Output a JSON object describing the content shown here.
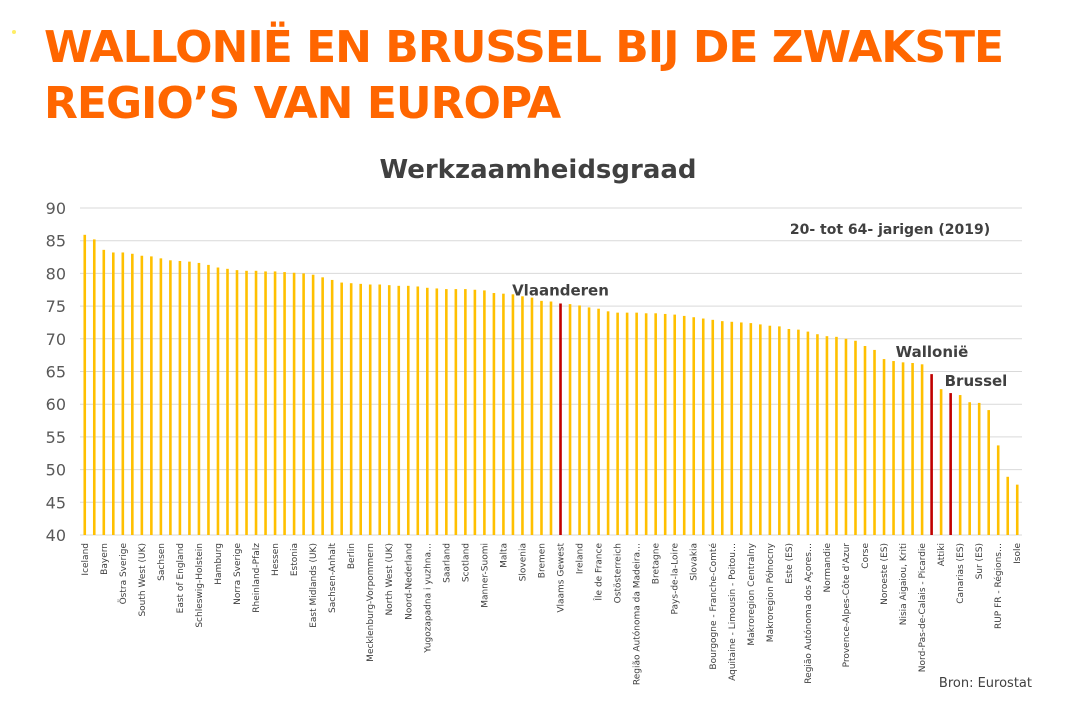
{
  "slide": {
    "title_line1": "WALLONIË EN BRUSSEL BIJ DE ZWAKSTE",
    "title_line2": "REGIO’S VAN EUROPA",
    "source": "Bron: Eurostat"
  },
  "colors": {
    "title": "#ff6600",
    "bar": "#ffc000",
    "highlight": "#c00000",
    "text": "#404040",
    "grid": "#d9d9d9"
  },
  "chart_data": {
    "type": "bar",
    "title": "Werkzaamheidsgraad",
    "subtitle": "20- tot 64- jarigen (2019)",
    "xlabel": "",
    "ylabel": "",
    "ylim": [
      40,
      90
    ],
    "yticks": [
      40,
      45,
      50,
      55,
      60,
      65,
      70,
      75,
      80,
      85,
      90
    ],
    "grid": true,
    "legend": "none",
    "labeled_every": 2,
    "categories": [
      "Iceland",
      "",
      "Bayern",
      "",
      "Östra Sverige",
      "",
      "South West (UK)",
      "",
      "Sachsen",
      "",
      "East of England",
      "",
      "Schleswig-Holstein",
      "",
      "Hamburg",
      "",
      "Norra Sverige",
      "",
      "Rheinland-Pfalz",
      "",
      "Hessen",
      "",
      "Estonia",
      "",
      "East Midlands (UK)",
      "",
      "Sachsen-Anhalt",
      "",
      "Berlin",
      "",
      "Mecklenburg-Vorpommern",
      "",
      "North West (UK)",
      "",
      "Noord-Nederland",
      "",
      "Yugozapadna i yuzhna…",
      "",
      "Saarland",
      "",
      "Scotland",
      "",
      "Manner-Suomi",
      "",
      "Malta",
      "",
      "Slovenia",
      "",
      "Bremen",
      "",
      "Vlaams Gewest",
      "",
      "Ireland",
      "",
      "Île de France",
      "",
      "Ostösterreich",
      "",
      "Região Autónoma da Madeira…",
      "",
      "Bretagne",
      "",
      "Pays-de-la-Loire",
      "",
      "Slovakia",
      "",
      "Bourgogne - Franche-Comté",
      "",
      "Aquitaine - Limousin - Poitou…",
      "",
      "Makroregion Centralny",
      "",
      "Makroregion Północny",
      "",
      "Este (ES)",
      "",
      "Região Autónoma dos Açores…",
      "",
      "Normandie",
      "",
      "Provence-Alpes-Côte d'Azur",
      "",
      "Corse",
      "",
      "Noroeste (ES)",
      "",
      "Nisia Aigaiou, Kriti",
      "",
      "Nord-Pas-de-Calais - Picardie",
      "",
      "Attiki",
      "",
      "Canarias (ES)",
      "",
      "Sur (ES)",
      "",
      "RUP FR - Régions…",
      "",
      "Isole"
    ],
    "values": [
      85.9,
      85.2,
      83.6,
      83.2,
      83.2,
      83.0,
      82.7,
      82.6,
      82.3,
      82.0,
      81.9,
      81.8,
      81.6,
      81.3,
      80.9,
      80.7,
      80.5,
      80.4,
      80.4,
      80.3,
      80.3,
      80.2,
      80.1,
      80.0,
      79.8,
      79.4,
      79.0,
      78.6,
      78.5,
      78.4,
      78.3,
      78.3,
      78.2,
      78.1,
      78.1,
      78.0,
      77.8,
      77.7,
      77.6,
      77.6,
      77.6,
      77.5,
      77.4,
      77.0,
      76.9,
      76.8,
      76.5,
      76.3,
      75.8,
      75.7,
      75.4,
      75.3,
      75.1,
      74.8,
      74.6,
      74.2,
      74.0,
      74.0,
      74.0,
      73.9,
      73.9,
      73.8,
      73.7,
      73.5,
      73.3,
      73.1,
      72.9,
      72.7,
      72.6,
      72.5,
      72.4,
      72.2,
      72.0,
      71.9,
      71.5,
      71.4,
      71.1,
      70.7,
      70.4,
      70.3,
      70.0,
      69.7,
      68.9,
      68.3,
      66.9,
      66.6,
      66.4,
      66.3,
      66.1,
      64.6,
      62.3,
      61.7,
      61.4,
      60.3,
      60.2,
      59.1,
      53.7,
      48.9,
      47.7
    ],
    "highlights": [
      {
        "index": 50,
        "label": "Vlaanderen"
      },
      {
        "index": 89,
        "label": "Wallonië"
      },
      {
        "index": 91,
        "label": "Brussel"
      }
    ]
  }
}
